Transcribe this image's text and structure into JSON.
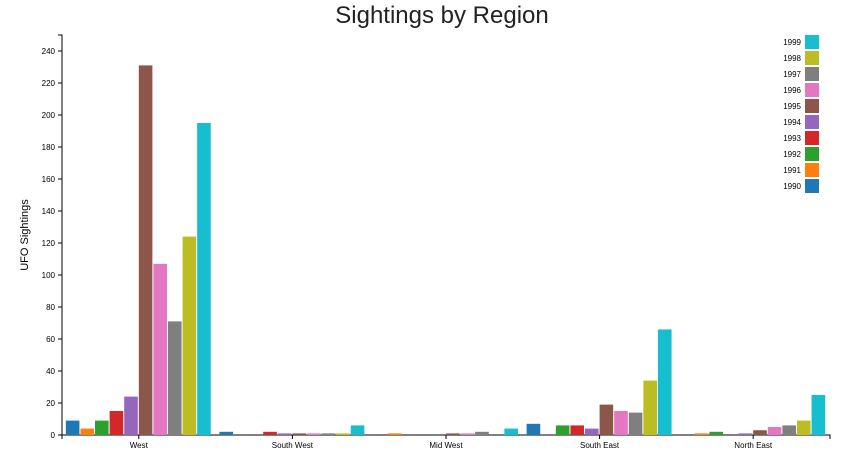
{
  "chart_data": {
    "type": "bar",
    "title": "Sightings by Region",
    "xlabel": "",
    "ylabel": "UFO Sightings",
    "categories": [
      "West",
      "South West",
      "Mid West",
      "South East",
      "North East"
    ],
    "ylim": [
      0,
      250
    ],
    "yticks": [
      0,
      20,
      40,
      60,
      80,
      100,
      120,
      140,
      160,
      180,
      200,
      220,
      240
    ],
    "legend_position": "top-right",
    "grid": false,
    "series": [
      {
        "name": "1990",
        "color": "#1f77b4",
        "values": [
          9,
          2,
          0,
          7,
          0
        ]
      },
      {
        "name": "1991",
        "color": "#ff7f0e",
        "values": [
          4,
          0,
          1,
          0,
          1
        ]
      },
      {
        "name": "1992",
        "color": "#2ca02c",
        "values": [
          9,
          0,
          0,
          6,
          2
        ]
      },
      {
        "name": "1993",
        "color": "#d62728",
        "values": [
          15,
          2,
          0,
          6,
          0
        ]
      },
      {
        "name": "1994",
        "color": "#9467bd",
        "values": [
          24,
          1,
          0,
          4,
          1
        ]
      },
      {
        "name": "1995",
        "color": "#8c564b",
        "values": [
          231,
          1,
          1,
          19,
          3
        ]
      },
      {
        "name": "1996",
        "color": "#e377c2",
        "values": [
          107,
          1,
          1,
          15,
          5
        ]
      },
      {
        "name": "1997",
        "color": "#7f7f7f",
        "values": [
          71,
          1,
          2,
          14,
          6
        ]
      },
      {
        "name": "1998",
        "color": "#bcbd22",
        "values": [
          124,
          1,
          0,
          34,
          9
        ]
      },
      {
        "name": "1999",
        "color": "#17becf",
        "values": [
          195,
          6,
          4,
          66,
          25
        ]
      }
    ]
  }
}
